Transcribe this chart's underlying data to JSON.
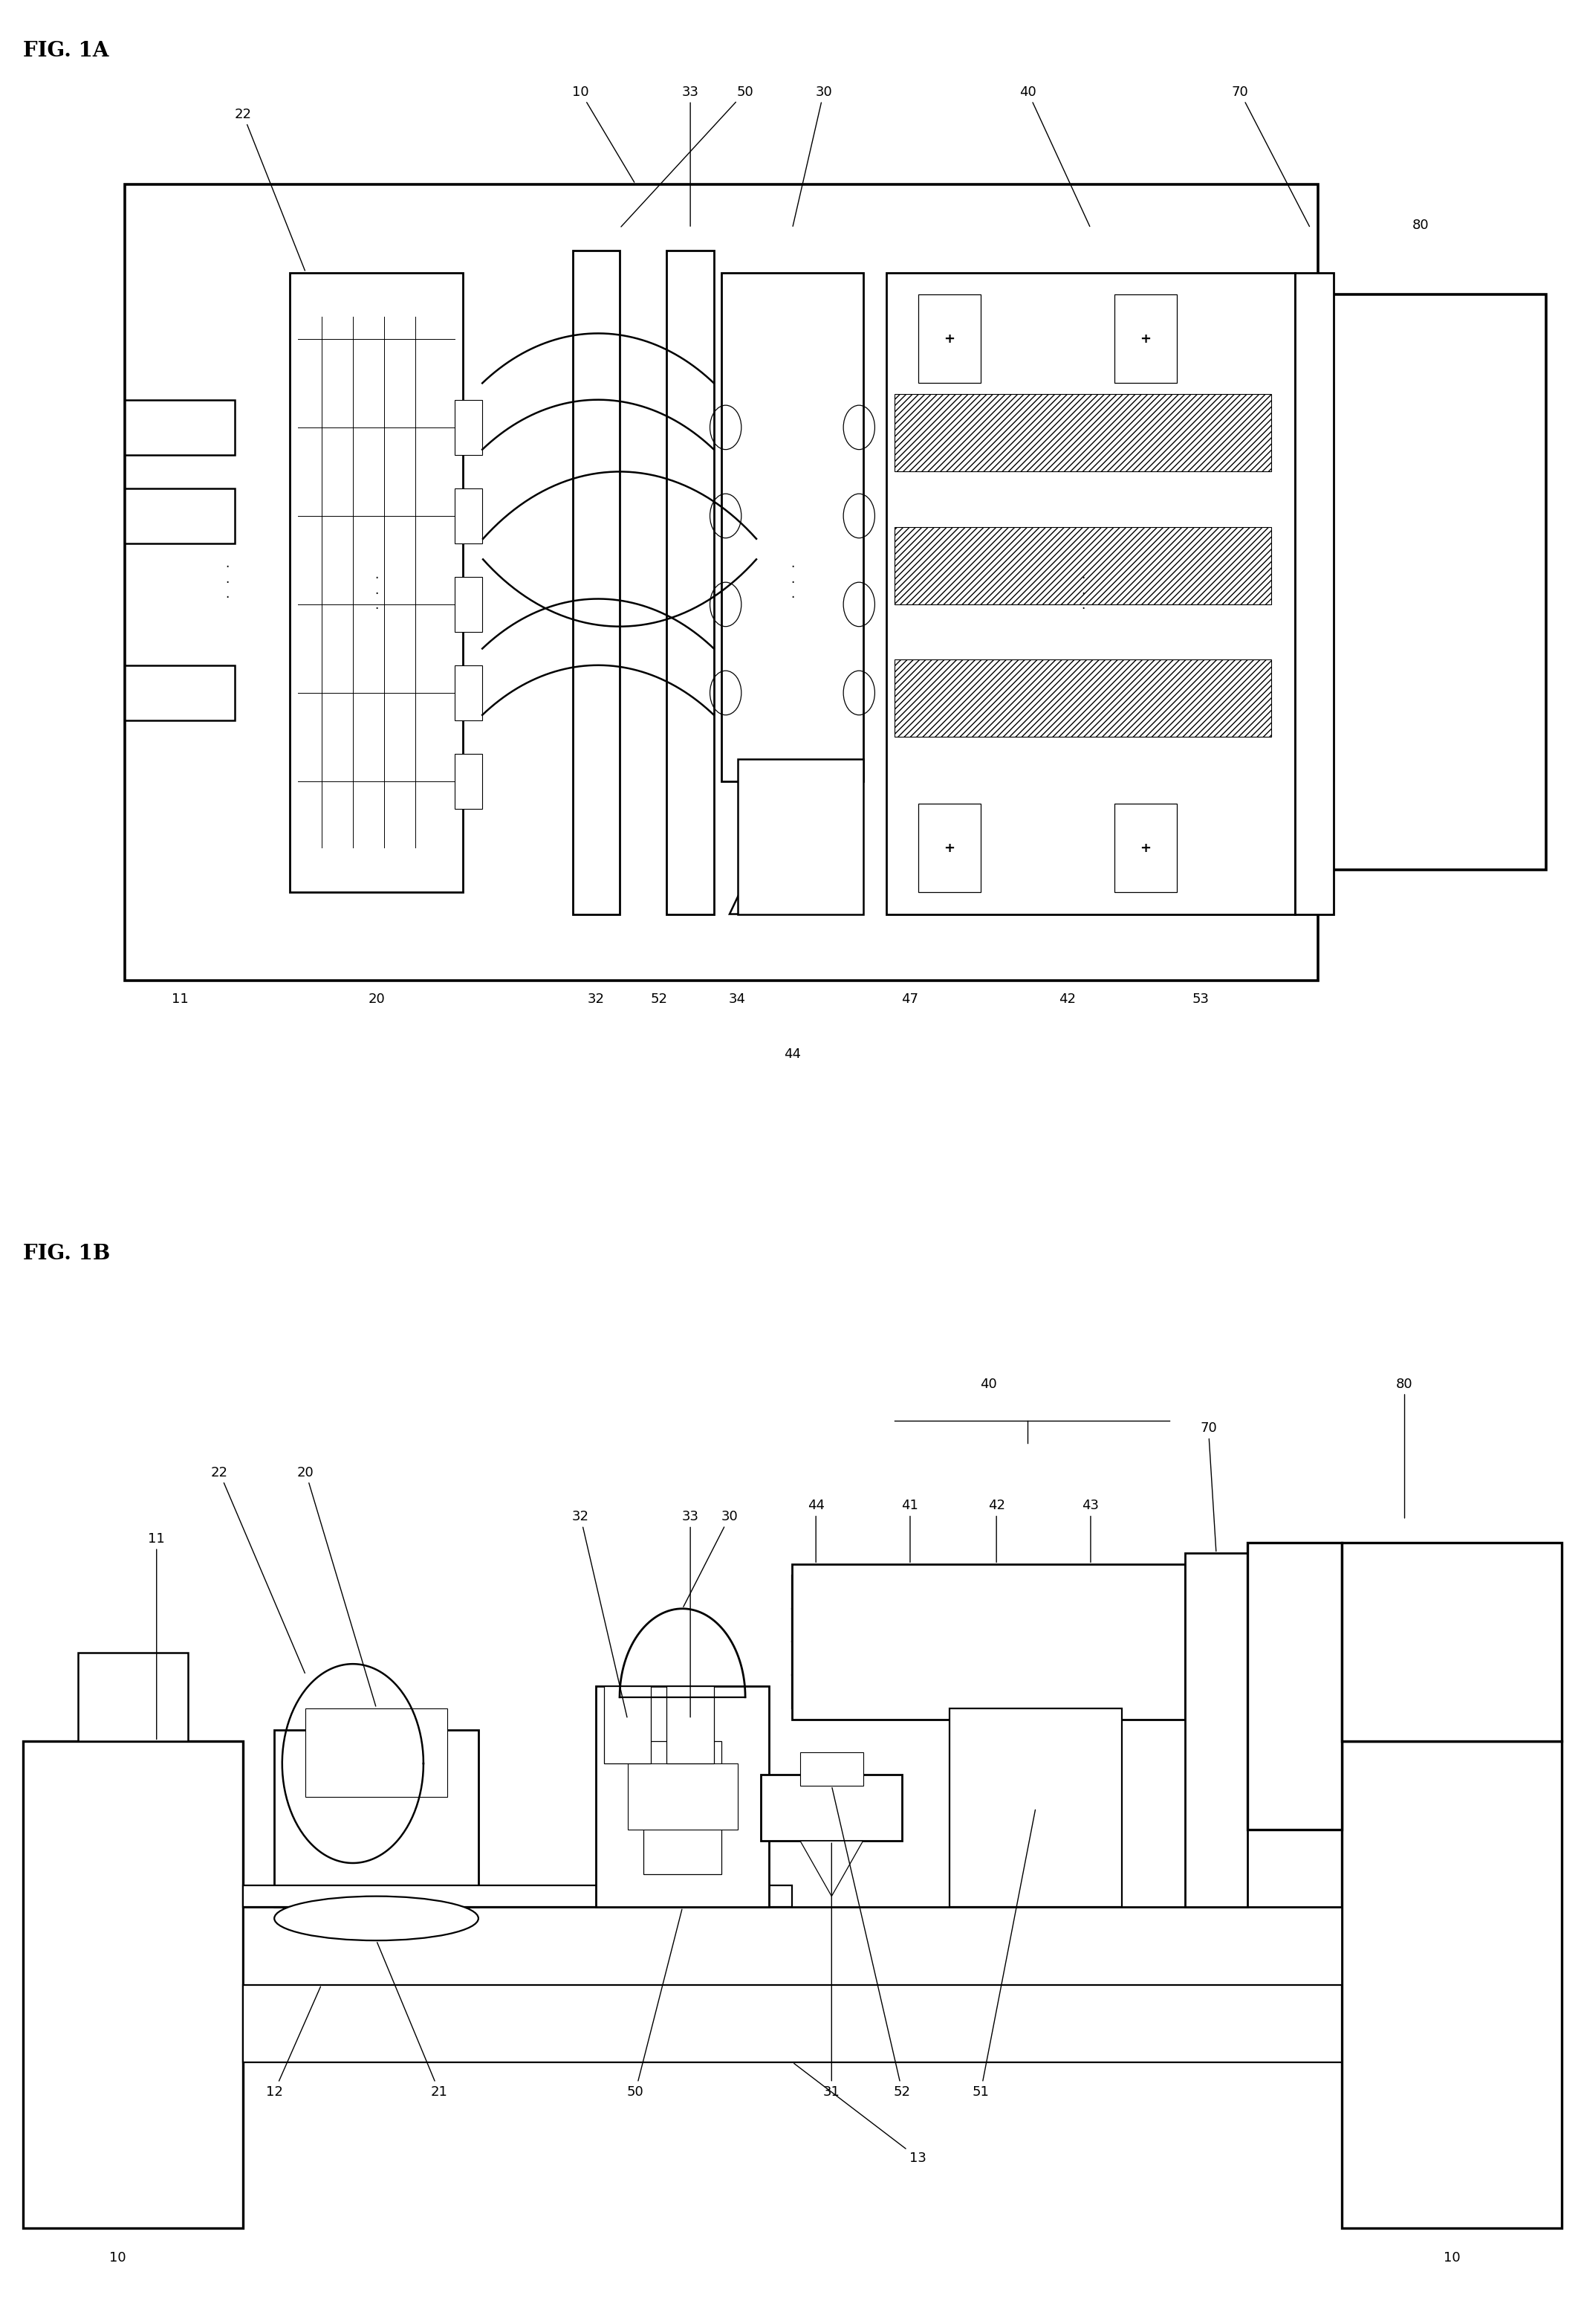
{
  "fig_title_a": "FIG. 1A",
  "fig_title_b": "FIG. 1B",
  "background_color": "#ffffff",
  "line_color": "#000000",
  "lw": 2.0,
  "fig_width": 22.72,
  "fig_height": 32.7
}
